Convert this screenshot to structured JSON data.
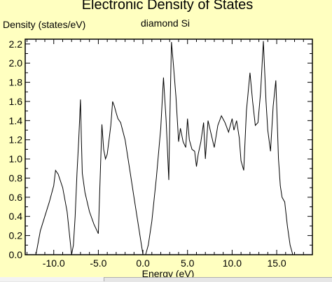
{
  "chart_data": {
    "type": "line",
    "title": "Electronic Density of States",
    "subtitle": "diamond Si",
    "xlabel": "Energy (eV)",
    "ylabel": "Density (states/eV)",
    "xlim": [
      -13.2,
      19.0
    ],
    "ylim": [
      0.0,
      2.25
    ],
    "xticks": [
      -10.0,
      -5.0,
      0.0,
      5.0,
      10.0,
      15.0
    ],
    "xtick_labels": [
      "-10.0",
      "-5.0",
      "0.0",
      "5.0",
      "10.0",
      "15.0"
    ],
    "yticks": [
      0.0,
      0.2,
      0.4,
      0.6,
      0.8,
      1.0,
      1.2,
      1.4,
      1.6,
      1.8,
      2.0,
      2.2
    ],
    "ytick_labels": [
      "0.0",
      "0.2",
      "0.4",
      "0.6",
      "0.8",
      "1.0",
      "1.2",
      "1.4",
      "1.6",
      "1.8",
      "2.0",
      "2.2"
    ],
    "grid": false,
    "series": [
      {
        "x": [
          -12.0,
          -11.5,
          -11.0,
          -10.5,
          -10.0,
          -9.8,
          -9.5,
          -9.0,
          -8.5,
          -8.0,
          -7.8,
          -7.6,
          -7.4,
          -7.2,
          -7.0,
          -6.9,
          -6.8,
          -6.5,
          -6.0,
          -5.5,
          -5.0,
          -4.6,
          -4.4,
          -4.2,
          -4.0,
          -3.8,
          -3.6,
          -3.4,
          -3.2,
          -3.0,
          -2.8,
          -2.5,
          -2.0,
          -1.5,
          -1.0,
          -0.5,
          0.0,
          0.3,
          0.6,
          1.0,
          1.5,
          2.0,
          2.3,
          2.6,
          2.9,
          3.0,
          3.2,
          3.4,
          3.7,
          4.0,
          4.2,
          4.5,
          4.8,
          5.0,
          5.2,
          5.5,
          5.8,
          6.0,
          6.2,
          6.5,
          6.8,
          7.0,
          7.3,
          7.6,
          8.0,
          8.4,
          8.8,
          9.2,
          9.6,
          10.0,
          10.2,
          10.5,
          10.8,
          11.0,
          11.3,
          11.6,
          12.0,
          12.3,
          12.6,
          12.9,
          13.2,
          13.5,
          13.8,
          14.0,
          14.3,
          14.6,
          14.9,
          15.2,
          15.4,
          15.6,
          15.9,
          16.2,
          16.5,
          16.8,
          17.0
        ],
        "y": [
          0.0,
          0.25,
          0.4,
          0.55,
          0.72,
          0.88,
          0.84,
          0.7,
          0.45,
          0.0,
          0.1,
          0.4,
          0.85,
          1.2,
          1.62,
          1.2,
          0.85,
          0.65,
          0.45,
          0.32,
          0.22,
          1.36,
          1.1,
          1.0,
          1.05,
          1.2,
          1.35,
          1.6,
          1.55,
          1.48,
          1.42,
          1.38,
          1.2,
          0.9,
          0.6,
          0.3,
          0.0,
          0.0,
          0.1,
          0.35,
          0.8,
          1.32,
          1.85,
          1.4,
          0.78,
          1.35,
          2.22,
          2.0,
          1.65,
          1.18,
          1.32,
          1.18,
          1.12,
          1.42,
          1.2,
          1.1,
          1.08,
          0.92,
          1.05,
          1.18,
          1.38,
          1.0,
          1.4,
          1.28,
          1.12,
          1.35,
          1.45,
          1.38,
          1.28,
          1.42,
          1.3,
          1.4,
          1.22,
          0.98,
          0.88,
          1.5,
          1.9,
          1.6,
          1.35,
          1.38,
          1.7,
          2.23,
          1.6,
          1.3,
          1.08,
          1.55,
          1.82,
          1.0,
          0.72,
          0.6,
          0.55,
          0.3,
          0.1,
          0.0,
          0.0
        ]
      }
    ]
  }
}
